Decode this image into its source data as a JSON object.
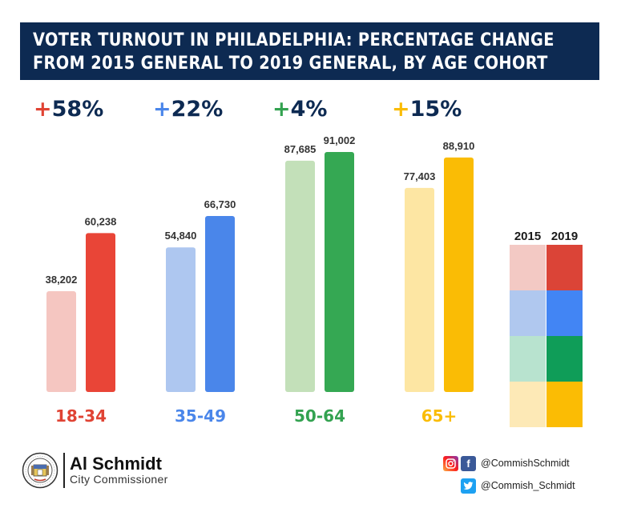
{
  "title": {
    "line1": "VOTER TURNOUT IN PHILADELPHIA: PERCENTAGE CHANGE",
    "line2": "FROM 2015 GENERAL TO 2019 GENERAL, BY AGE COHORT"
  },
  "chart_data": {
    "type": "bar",
    "title": "VOTER TURNOUT IN PHILADELPHIA: PERCENTAGE CHANGE FROM 2015 GENERAL TO 2019 GENERAL, BY AGE COHORT",
    "categories": [
      "18-34",
      "35-49",
      "50-64",
      "65+"
    ],
    "series": [
      {
        "name": "2015",
        "values": [
          38202,
          54840,
          87685,
          77403
        ]
      },
      {
        "name": "2019",
        "values": [
          60238,
          66730,
          91002,
          88910
        ]
      }
    ],
    "value_labels_2015": [
      "38,202",
      "54,840",
      "87,685",
      "77,403"
    ],
    "value_labels_2019": [
      "60,238",
      "66,730",
      "91,002",
      "88,910"
    ],
    "pct_change_labels": [
      "+58%",
      "+22%",
      "+4%",
      "+15%"
    ],
    "colors_2015": [
      "#f5c6c1",
      "#aec7f0",
      "#c3e0b9",
      "#fde6a3"
    ],
    "colors_2019": [
      "#e94537",
      "#4a86ea",
      "#35a853",
      "#fabc05"
    ],
    "label_colors": [
      "#e04334",
      "#4a86ea",
      "#33a250",
      "#fabc05"
    ],
    "legend": {
      "position": "right",
      "years": [
        "2015",
        "2019"
      ],
      "swatches_2015": [
        "#f3c9c4",
        "#b0c8ef",
        "#b8e3cf",
        "#fde9b6"
      ],
      "swatches_2019": [
        "#db4437",
        "#4285f4",
        "#0f9d58",
        "#fbbc04"
      ]
    },
    "xlabel": "",
    "ylabel": "",
    "ylim": [
      0,
      91002
    ]
  },
  "footer": {
    "name": "Al Schmidt",
    "role": "City Commissioner",
    "instagram_facebook_handle": "@CommishSchmidt",
    "twitter_handle": "@Commish_Schmidt",
    "colors": {
      "navy": "#0d2a52",
      "facebook": "#3b5998",
      "twitter": "#1da1f2"
    }
  }
}
